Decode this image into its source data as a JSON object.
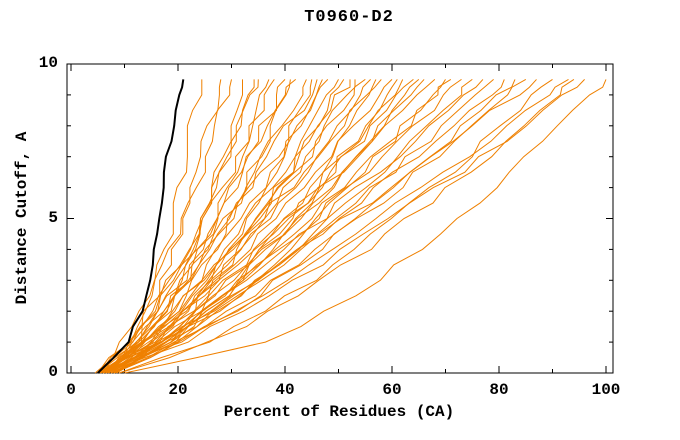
{
  "chart_data": {
    "type": "line",
    "title": "T0960-D2",
    "xlabel": "Percent of Residues (CA)",
    "ylabel": "Distance Cutoff, A",
    "xlim": [
      -1,
      101.5
    ],
    "ylim": [
      0,
      10
    ],
    "grid": false,
    "legend": "none",
    "x_major_ticks": [
      0,
      20,
      40,
      60,
      80,
      100
    ],
    "x_minor_ticks": [
      10,
      30,
      50,
      70,
      90
    ],
    "y_major_ticks": [
      0,
      5,
      10
    ],
    "y_minor_ticks": [
      1,
      2,
      3,
      4,
      6,
      7,
      8,
      9
    ],
    "colors": {
      "model_curves": "#ef8000",
      "highlight_curve": "#000000",
      "axes": "#000000",
      "background": "#ffffff"
    },
    "cutoffs": [
      0,
      1,
      2,
      3,
      4,
      5,
      6,
      7,
      8,
      9,
      9.5
    ],
    "highlight_curve": {
      "percents": [
        5,
        10.5,
        13.2,
        15,
        15.6,
        16.2,
        17.2,
        17.9,
        19.4,
        20.3,
        21
      ]
    },
    "curves": [
      {
        "percents": [
          5,
          11.2,
          13.7,
          15.7,
          17.3,
          18.8,
          20.1,
          21.3,
          22.4,
          23.5,
          24
        ]
      },
      {
        "percents": [
          5.5,
          11.3,
          14.3,
          16.8,
          18.9,
          20.8,
          22.6,
          24.2,
          25.8,
          27.3,
          28
        ]
      },
      {
        "percents": [
          4.5,
          9.8,
          13.1,
          15.9,
          18.4,
          20.8,
          23,
          25.1,
          27.1,
          29.1,
          30
        ]
      },
      {
        "percents": [
          6,
          13.5,
          17.1,
          19.8,
          22.1,
          24.2,
          26.2,
          28,
          29.7,
          31.2,
          32
        ]
      },
      {
        "percents": [
          5,
          11.8,
          15.6,
          18.7,
          21.5,
          24.1,
          26.5,
          28.8,
          30.9,
          33,
          34
        ]
      },
      {
        "percents": [
          7,
          12.2,
          15.7,
          18.8,
          21.6,
          24.3,
          26.9,
          29.3,
          31.6,
          33.9,
          35
        ]
      },
      {
        "percents": [
          5.5,
          13.7,
          17.9,
          21.3,
          24.2,
          26.9,
          29.4,
          31.7,
          33.9,
          36,
          37
        ]
      },
      {
        "percents": [
          6.5,
          11.7,
          15.6,
          19,
          22.3,
          25.3,
          28.3,
          31.2,
          33.9,
          36.6,
          38
        ]
      },
      {
        "percents": [
          5,
          12.2,
          16.8,
          20.6,
          24.1,
          27.3,
          30.4,
          33.3,
          36,
          38.7,
          40
        ]
      },
      {
        "percents": [
          7.5,
          15.3,
          19.7,
          23.4,
          26.6,
          29.6,
          32.4,
          35,
          37.5,
          39.8,
          41
        ]
      },
      {
        "percents": [
          6,
          11.4,
          15.6,
          19.6,
          23.3,
          26.9,
          30.4,
          33.8,
          37.1,
          40.4,
          42
        ]
      },
      {
        "percents": [
          5.5,
          12.7,
          17.5,
          21.8,
          25.6,
          29.3,
          32.8,
          36.1,
          39.3,
          42.5,
          44
        ]
      },
      {
        "percents": [
          8,
          17.6,
          22.5,
          26.5,
          30,
          33.2,
          36.1,
          38.8,
          41.4,
          43.8,
          45
        ]
      },
      {
        "percents": [
          6,
          12.6,
          17.5,
          21.9,
          26,
          29.9,
          33.7,
          37.3,
          40.8,
          44.3,
          46
        ]
      },
      {
        "percents": [
          5,
          13.7,
          19.1,
          23.8,
          27.9,
          31.8,
          35.5,
          38.9,
          42.3,
          45.4,
          47
        ]
      },
      {
        "percents": [
          7,
          12.4,
          17.1,
          21.6,
          25.8,
          30,
          34.1,
          38.2,
          42.1,
          46,
          48
        ]
      },
      {
        "percents": [
          6.5,
          14.6,
          20.1,
          24.9,
          29.3,
          33.4,
          37.3,
          41.1,
          44.7,
          48.3,
          50
        ]
      },
      {
        "percents": [
          5.5,
          16.1,
          22.1,
          27.1,
          31.4,
          35.5,
          39.3,
          42.8,
          46.2,
          49.4,
          51
        ]
      },
      {
        "percents": [
          8.5,
          15.7,
          21,
          25.8,
          30.3,
          34.5,
          38.6,
          42.6,
          46.4,
          50.1,
          52
        ]
      },
      {
        "percents": [
          6,
          15.7,
          21.8,
          27,
          31.7,
          36,
          40.1,
          44,
          47.7,
          51.3,
          53
        ]
      },
      {
        "percents": [
          7,
          14.2,
          19.9,
          25.1,
          30,
          34.8,
          39.5,
          44.1,
          48.5,
          52.8,
          55
        ]
      },
      {
        "percents": [
          5,
          14.5,
          20.9,
          26.6,
          31.7,
          36.5,
          41.2,
          45.6,
          49.8,
          54,
          56
        ]
      },
      {
        "percents": [
          8,
          19.4,
          25.9,
          31.2,
          35.9,
          40.3,
          44.4,
          48.2,
          51.8,
          55.3,
          57
        ]
      },
      {
        "percents": [
          6.5,
          13.3,
          19.2,
          24.8,
          30.1,
          35.4,
          40.6,
          45.6,
          50.6,
          55.5,
          58
        ]
      },
      {
        "percents": [
          5.5,
          14.5,
          21.2,
          27.2,
          32.8,
          38.1,
          43.3,
          48.2,
          53,
          57.7,
          60
        ]
      },
      {
        "percents": [
          7.5,
          18.5,
          25.5,
          31.4,
          36.7,
          41.6,
          46.3,
          50.7,
          55,
          59,
          61
        ]
      },
      {
        "percents": [
          6,
          16.4,
          23.5,
          29.7,
          35.3,
          40.6,
          45.7,
          50.6,
          55.2,
          59.8,
          62
        ]
      },
      {
        "percents": [
          8.5,
          16.8,
          23.4,
          29.4,
          35.1,
          40.7,
          46.1,
          51.3,
          56.5,
          61.5,
          64
        ]
      },
      {
        "percents": [
          5,
          17.4,
          25.2,
          31.8,
          37.8,
          43.3,
          48.5,
          53.5,
          58.2,
          62.8,
          65
        ]
      },
      {
        "percents": [
          7,
          16.7,
          24,
          30.5,
          36.5,
          42.3,
          47.9,
          53.2,
          58.4,
          63.5,
          66
        ]
      },
      {
        "percents": [
          6.5,
          14.6,
          21.7,
          28.3,
          34.7,
          41,
          47.2,
          53.2,
          59.1,
          65,
          68
        ]
      },
      {
        "percents": [
          8,
          19.5,
          27.3,
          34.2,
          40.4,
          46.3,
          52,
          57.3,
          62.5,
          67.5,
          70
        ]
      },
      {
        "percents": [
          5.5,
          16.3,
          24.4,
          31.6,
          38.3,
          44.7,
          50.9,
          56.8,
          62.6,
          68.2,
          71
        ]
      },
      {
        "percents": [
          7.5,
          17.3,
          25.1,
          32.2,
          38.9,
          45.5,
          51.9,
          58.1,
          64.1,
          70.1,
          73
        ]
      },
      {
        "percents": [
          6,
          18.8,
          27.5,
          35.2,
          42.1,
          48.6,
          54.9,
          60.9,
          66.7,
          72.2,
          75
        ]
      },
      {
        "percents": [
          8.5,
          17.5,
          25.4,
          32.8,
          39.9,
          46.9,
          53.8,
          60.6,
          67.1,
          73.7,
          77
        ]
      },
      {
        "percents": [
          6.5,
          18.5,
          27.4,
          35.4,
          42.8,
          49.9,
          56.7,
          63.3,
          69.6,
          75.9,
          79
        ]
      },
      {
        "percents": [
          7,
          18,
          26.8,
          34.9,
          42.5,
          49.9,
          57.2,
          64.1,
          70.9,
          77.7,
          81
        ]
      },
      {
        "percents": [
          5.5,
          19.9,
          29.7,
          38.3,
          46,
          53.4,
          60.5,
          67.2,
          73.6,
          79.9,
          83
        ]
      },
      {
        "percents": [
          8,
          20.7,
          30.2,
          38.6,
          46.5,
          54,
          61.4,
          68.3,
          75.1,
          81.7,
          85
        ]
      },
      {
        "percents": [
          6,
          16.7,
          26,
          34.8,
          43.2,
          51.4,
          59.6,
          67.6,
          75.3,
          83.1,
          87
        ]
      },
      {
        "percents": [
          9,
          25.7,
          36.2,
          45.2,
          53.2,
          60.7,
          67.7,
          74.4,
          80.8,
          87,
          90
        ]
      },
      {
        "percents": [
          7.5,
          20.2,
          30.4,
          39.7,
          48.5,
          57.1,
          65.5,
          73.5,
          81.4,
          89.2,
          93
        ]
      },
      {
        "percents": [
          6.5,
          21.3,
          32.3,
          42.1,
          51.3,
          60,
          68.5,
          76.6,
          84.5,
          92.1,
          96
        ]
      },
      {
        "percents": [
          9,
          26.5,
          37.6,
          47,
          55.4,
          63.3,
          70.7,
          77.7,
          84.4,
          90.9,
          94
        ]
      },
      {
        "percents": [
          10,
          36,
          48,
          57,
          65,
          72,
          79,
          85,
          91,
          97,
          100
        ]
      }
    ]
  }
}
